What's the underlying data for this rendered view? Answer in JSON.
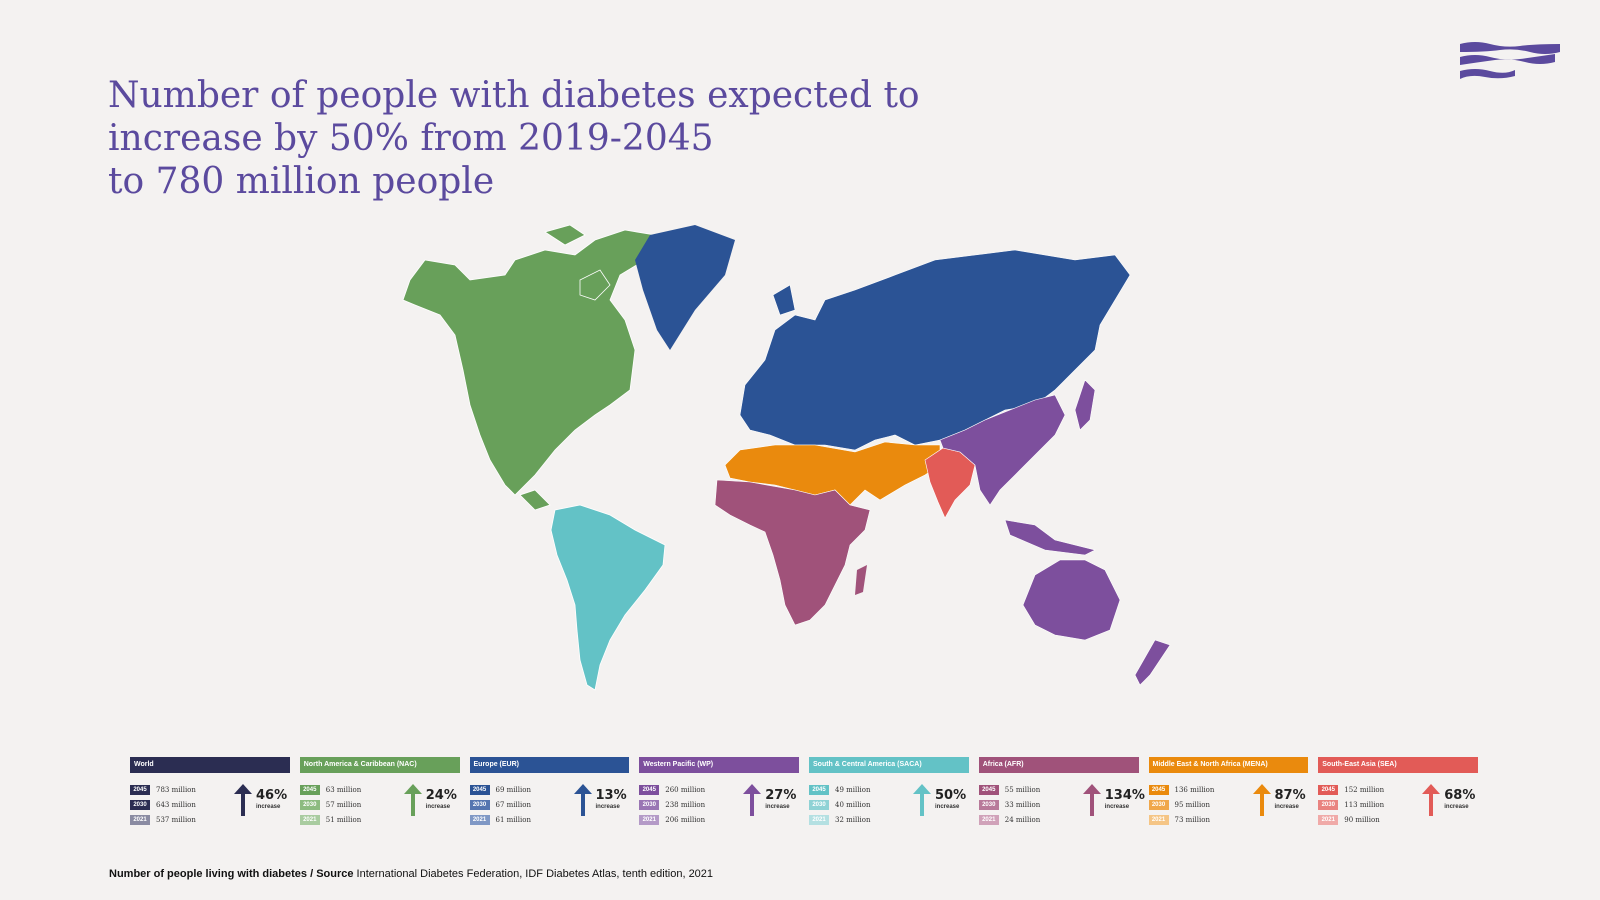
{
  "title": {
    "line1": "Number of people with diabetes expected to",
    "line2": "increase by 50% from  2019-2045",
    "line3": "to 780 million people"
  },
  "colors": {
    "title": "#5b4a9e",
    "world": "#2b2d52",
    "nac": "#68a05a",
    "eur": "#2b5395",
    "wp": "#7d4f9d",
    "saca": "#63c2c6",
    "afr": "#a0527a",
    "mena": "#ea8a0d",
    "sea": "#e25b57"
  },
  "regions": [
    {
      "name": "World",
      "color": "#2b2d52",
      "light": "#8a8ba2",
      "rows": [
        {
          "year": "2045",
          "value": "783 million"
        },
        {
          "year": "2030",
          "value": "643 million"
        },
        {
          "year": "2021",
          "value": "537 million"
        }
      ],
      "increase": "46%"
    },
    {
      "name": "North America & Caribbean (NAC)",
      "color": "#68a05a",
      "light": "#a9cca0",
      "rows": [
        {
          "year": "2045",
          "value": "63 million"
        },
        {
          "year": "2030",
          "value": "57 million"
        },
        {
          "year": "2021",
          "value": "51 million"
        }
      ],
      "increase": "24%"
    },
    {
      "name": "Europe (EUR)",
      "color": "#2b5395",
      "light": "#7f98c5",
      "rows": [
        {
          "year": "2045",
          "value": "69 million"
        },
        {
          "year": "2030",
          "value": "67 million"
        },
        {
          "year": "2021",
          "value": "61 million"
        }
      ],
      "increase": "13%"
    },
    {
      "name": "Western Pacific (WP)",
      "color": "#7d4f9d",
      "light": "#b49ac7",
      "rows": [
        {
          "year": "2045",
          "value": "260 million"
        },
        {
          "year": "2030",
          "value": "238 million"
        },
        {
          "year": "2021",
          "value": "206 million"
        }
      ],
      "increase": "27%"
    },
    {
      "name": "South & Central America (SACA)",
      "color": "#63c2c6",
      "light": "#b4e0e2",
      "rows": [
        {
          "year": "2045",
          "value": "49 million"
        },
        {
          "year": "2030",
          "value": "40 million"
        },
        {
          "year": "2021",
          "value": "32 million"
        }
      ],
      "increase": "50%"
    },
    {
      "name": "Africa (AFR)",
      "color": "#a0527a",
      "light": "#d0a2b9",
      "rows": [
        {
          "year": "2045",
          "value": "55 million"
        },
        {
          "year": "2030",
          "value": "33 million"
        },
        {
          "year": "2021",
          "value": "24 million"
        }
      ],
      "increase": "134%"
    },
    {
      "name": "Middle East & North Africa (MENA)",
      "color": "#ea8a0d",
      "light": "#f5c585",
      "rows": [
        {
          "year": "2045",
          "value": "136 million"
        },
        {
          "year": "2030",
          "value": "95 million"
        },
        {
          "year": "2021",
          "value": "73 million"
        }
      ],
      "increase": "87%"
    },
    {
      "name": "South-East Asia (SEA)",
      "color": "#e25b57",
      "light": "#f0aaa8",
      "rows": [
        {
          "year": "2045",
          "value": "152 million"
        },
        {
          "year": "2030",
          "value": "113 million"
        },
        {
          "year": "2021",
          "value": "90 million"
        }
      ],
      "increase": "68%"
    }
  ],
  "increase_label": "increase",
  "source": {
    "label": "Number of people living with diabetes / Source",
    "text": " International Diabetes Federation, IDF Diabetes Atlas, tenth edition, 2021"
  }
}
